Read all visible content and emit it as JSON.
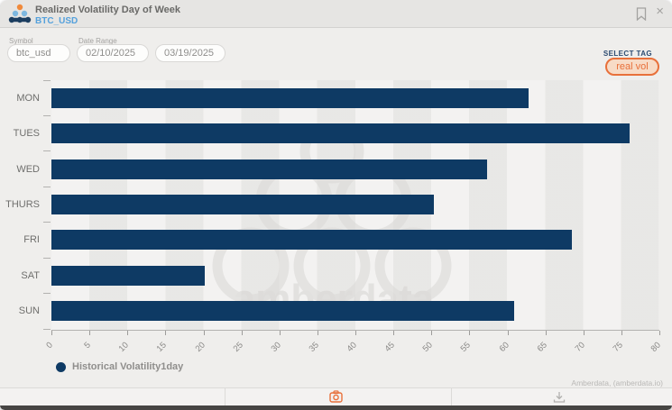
{
  "window": {
    "title": "Realized Volatility Day of Week",
    "subtitle": "BTC_USD"
  },
  "controls": {
    "symbol_label": "Symbol",
    "symbol_value": "btc_usd",
    "date_range_label": "Date Range",
    "date_from": "02/10/2025",
    "date_to": "03/19/2025",
    "select_tag_label": "SELECT TAG",
    "tag_button_label": "real vol"
  },
  "chart_data": {
    "type": "bar",
    "orientation": "horizontal",
    "title": "Realized Volatility Day of Week",
    "categories": [
      "MON",
      "TUES",
      "WED",
      "THURS",
      "FRI",
      "SAT",
      "SUN"
    ],
    "series": [
      {
        "name": "Historical Volatility1day",
        "values": [
          62.8,
          76.1,
          57.3,
          50.3,
          68.5,
          20.2,
          60.9
        ]
      }
    ],
    "xlim": [
      0,
      80
    ],
    "x_ticks": [
      0,
      5,
      10,
      15,
      20,
      25,
      30,
      35,
      40,
      45,
      50,
      55,
      60,
      65,
      70,
      75,
      80
    ],
    "xlabel": "",
    "ylabel": "",
    "grid": false,
    "legend_position": "bottom-left",
    "bar_color": "#0e3a64"
  },
  "legend": {
    "label": "Historical Volatility1day",
    "color": "#0e3a64"
  },
  "watermark": {
    "text": "amberdata"
  },
  "attribution": "Amberdata, (amberdata.io)",
  "icons": {
    "close_glyph": "×"
  },
  "colors": {
    "accent_orange": "#e8703a",
    "bar_navy": "#0e3a64",
    "subtitle_blue": "#55a1dc",
    "topbar_bg": "#e6e5e3",
    "body_bg": "#efeeec"
  }
}
